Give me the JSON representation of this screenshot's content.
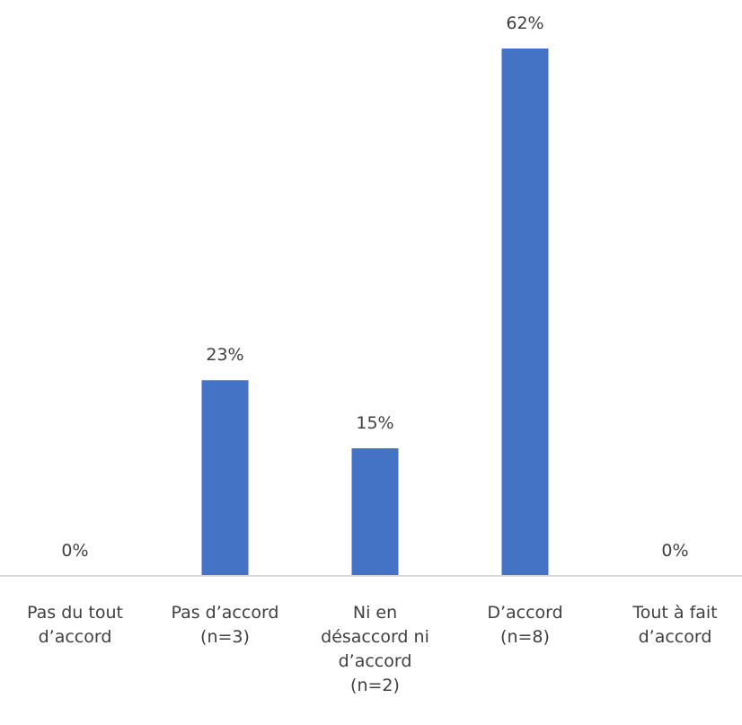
{
  "chart_data": {
    "type": "bar",
    "title": "",
    "xlabel": "",
    "ylabel": "",
    "ylim": [
      0,
      62
    ],
    "grid": false,
    "legend": "none",
    "bar_color": "#4472C4",
    "axis_color": "#D9D9D9",
    "categories": [
      [
        "Pas du tout",
        "d’accord"
      ],
      [
        "Pas d’accord",
        "(n=3)"
      ],
      [
        "Ni en",
        "désaccord ni",
        "d’accord",
        "(n=2)"
      ],
      [
        "D’accord",
        "(n=8)"
      ],
      [
        "Tout à fait",
        "d’accord"
      ]
    ],
    "values": [
      0,
      23,
      15,
      62,
      0
    ],
    "data_labels": [
      "0%",
      "23%",
      "15%",
      "62%",
      "0%"
    ]
  }
}
